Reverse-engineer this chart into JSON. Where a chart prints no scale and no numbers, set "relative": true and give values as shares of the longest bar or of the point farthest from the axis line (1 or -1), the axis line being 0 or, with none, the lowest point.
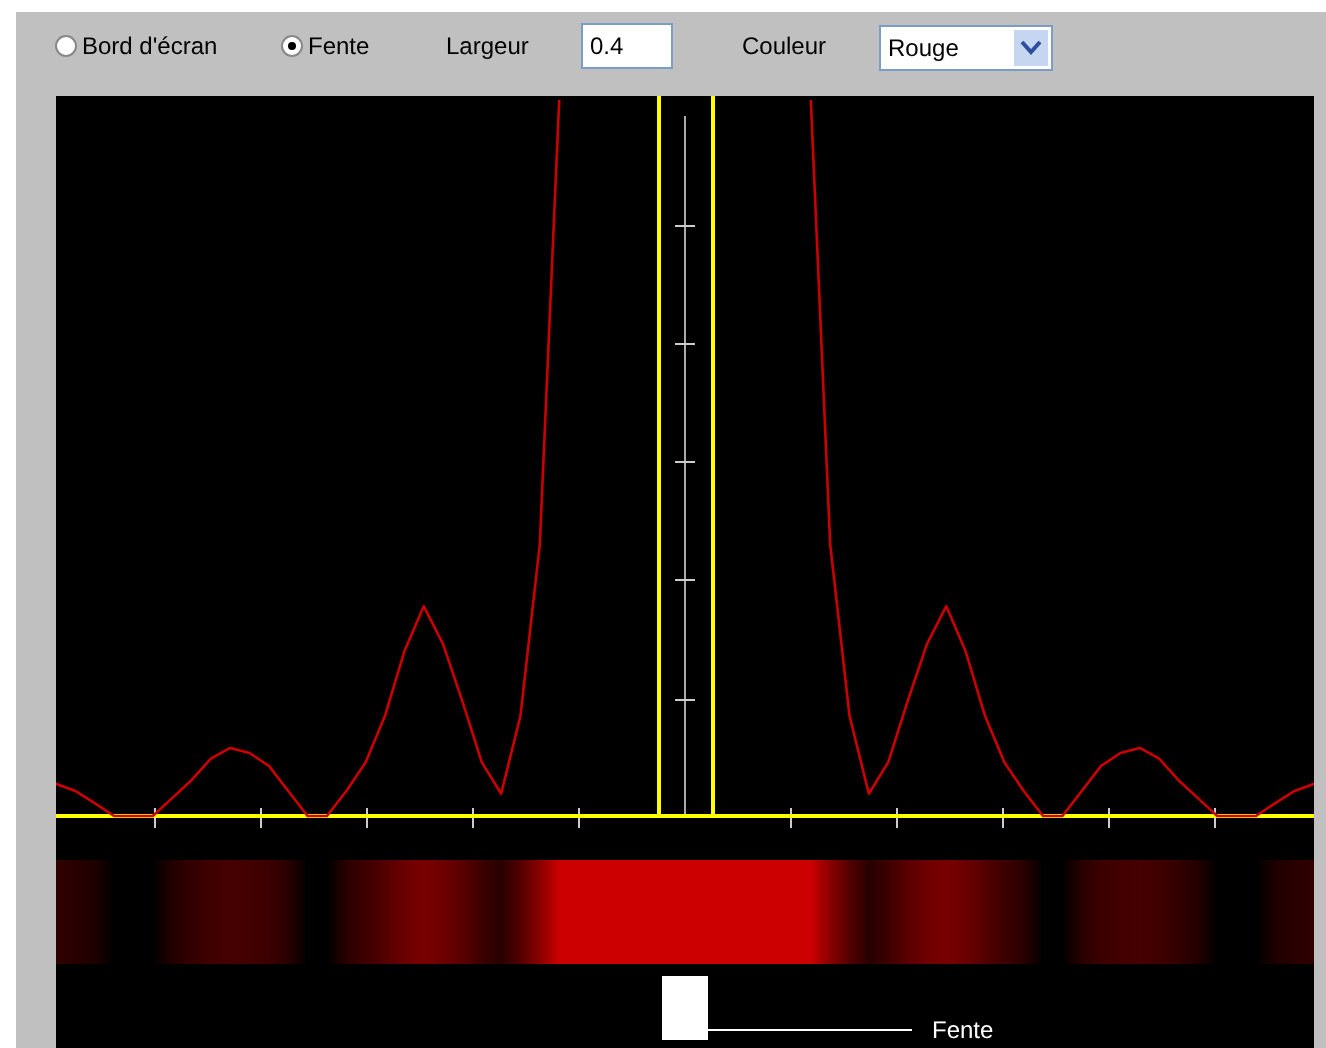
{
  "chart_data": {
    "type": "line",
    "relative": true,
    "marker": "none",
    "line_style": "solid",
    "annotations": [
      "Bord d'écran",
      "Fente",
      "Largeur",
      "0.4",
      "Couleur",
      "Rouge",
      "Fente"
    ],
    "categories": [
      null,
      null,
      null,
      null,
      null,
      null,
      null,
      null,
      null,
      null,
      null,
      null,
      null,
      null,
      null,
      null,
      null,
      null,
      null,
      null,
      null,
      null,
      null,
      null,
      null,
      null,
      null,
      null,
      null,
      null,
      null,
      null,
      null,
      null,
      null,
      null,
      null,
      null,
      null,
      null,
      null,
      null,
      null,
      null,
      null,
      null,
      null,
      null,
      null,
      null,
      null,
      null,
      null,
      null,
      null,
      null,
      null,
      null,
      null,
      null,
      null,
      null,
      null,
      null,
      null,
      null
    ],
    "series": [
      {
        "color": "#cc0000",
        "values": [
          0.045,
          0.035,
          0.018,
          0,
          0,
          0,
          0.025,
          0.05,
          0.08,
          0.095,
          0.088,
          0.07,
          0.035,
          0,
          0,
          0.035,
          0.075,
          0.14,
          0.23,
          0.293,
          0.24,
          0.16,
          0.075,
          0.031,
          0.14,
          0.38,
          1,
          null,
          null,
          null,
          null,
          null,
          null,
          null,
          null,
          null,
          null,
          null,
          null,
          null,
          null,
          null,
          null,
          null,
          null,
          null,
          null,
          null,
          null,
          null,
          null,
          null,
          null,
          null,
          null,
          null,
          null,
          null,
          null,
          null,
          null,
          null,
          null,
          null,
          null,
          null
        ]
      },
      {
        "color": "#cc0000",
        "values": [
          null,
          null,
          null,
          null,
          null,
          null,
          null,
          null,
          null,
          null,
          null,
          null,
          null,
          null,
          null,
          null,
          null,
          null,
          null,
          null,
          null,
          null,
          null,
          null,
          null,
          null,
          null,
          null,
          null,
          null,
          null,
          null,
          null,
          null,
          null,
          null,
          null,
          null,
          null,
          1,
          0.38,
          0.14,
          0.031,
          0.075,
          0.16,
          0.24,
          0.293,
          0.23,
          0.14,
          0.075,
          0.035,
          0,
          0,
          0.035,
          0.07,
          0.088,
          0.095,
          0.08,
          0.05,
          0.025,
          0,
          0,
          0,
          0.018,
          0.035,
          0.045
        ]
      }
    ]
  }
}
